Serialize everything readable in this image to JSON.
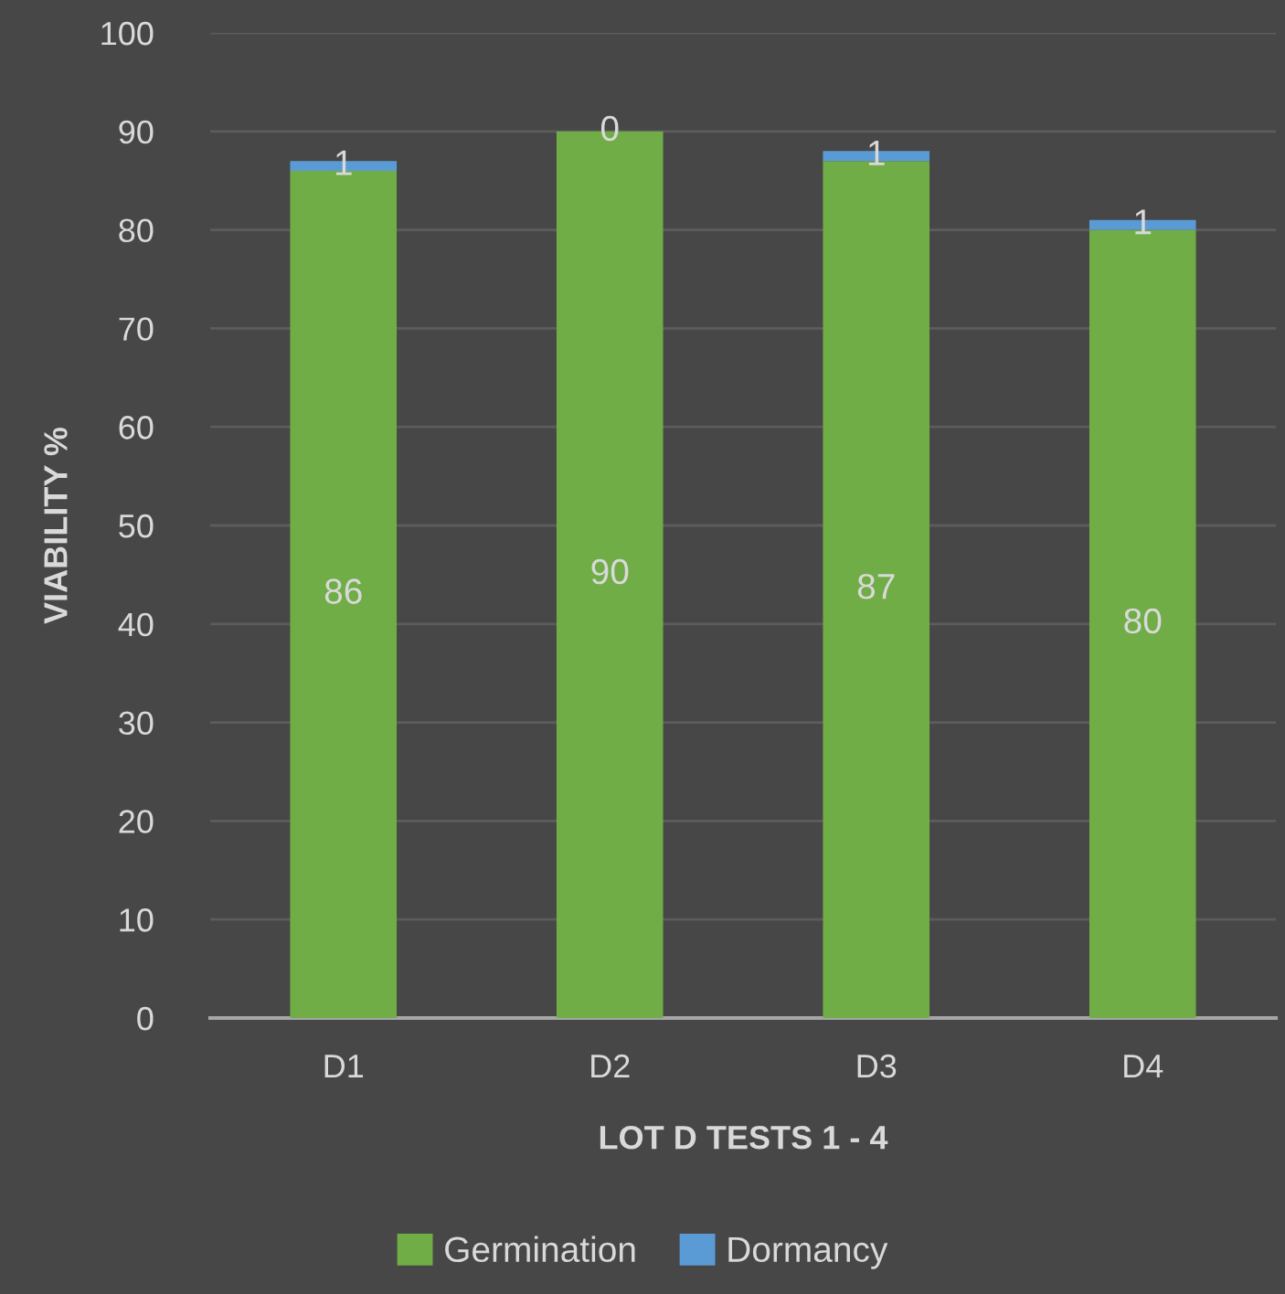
{
  "chart_data": {
    "type": "bar",
    "stacked": true,
    "xlabel": "LOT D TESTS 1 - 4",
    "ylabel": "VIABILITY %",
    "categories": [
      "D1",
      "D2",
      "D3",
      "D4"
    ],
    "series": [
      {
        "name": "Germination",
        "color": "#70ad47",
        "values": [
          86,
          90,
          87,
          80
        ]
      },
      {
        "name": "Dormancy",
        "color": "#5b9bd5",
        "values": [
          1,
          0,
          1,
          1
        ]
      }
    ],
    "ylim": [
      0,
      100
    ],
    "yticks": [
      0,
      10,
      20,
      30,
      40,
      50,
      60,
      70,
      80,
      90,
      100
    ],
    "grid": "y",
    "legend": "bottom",
    "data_labels": true
  }
}
